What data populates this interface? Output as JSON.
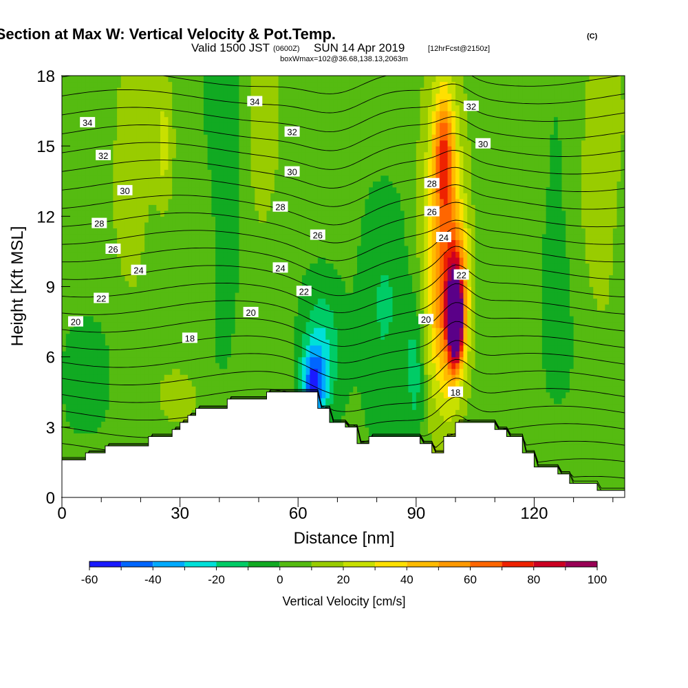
{
  "chart_data": {
    "type": "heatmap",
    "title": {
      "main": "Wind-Parallel Section at Max W: Vertical Velocity & Pot.Temp.",
      "main_tag": "(C)",
      "valid_prefix": "Valid 1500 JST",
      "valid_utc": "(0600Z)",
      "valid_date": "SUN 14 Apr 2019",
      "forecast": "[12hrFcst@2150z]",
      "box": "boxWmax=102@36.68,138.13,2063m"
    },
    "xlabel": "Distance [nm]",
    "ylabel": "Height [Kft MSL]",
    "xlim": [
      0,
      143
    ],
    "ylim": [
      0,
      18
    ],
    "x_ticks": [
      0,
      30,
      60,
      90,
      120
    ],
    "x_tick_labels": [
      "0",
      "30",
      "60",
      "90",
      "120"
    ],
    "x_minor_ticks": [
      10,
      20,
      40,
      50,
      70,
      80,
      100,
      110,
      130,
      140
    ],
    "y_ticks": [
      0,
      3,
      6,
      9,
      12,
      15,
      18
    ],
    "y_tick_labels": [
      "0",
      "3",
      "6",
      "9",
      "12",
      "15",
      "18"
    ],
    "colorbar": {
      "label": "Vertical Velocity [cm/s]",
      "bounds": [
        -60,
        -50,
        -40,
        -30,
        -20,
        -10,
        0,
        10,
        20,
        30,
        40,
        50,
        60,
        70,
        80,
        90,
        100
      ],
      "colors": [
        "#1a1aff",
        "#0066ff",
        "#00aaff",
        "#00e0d8",
        "#00cc66",
        "#11aa22",
        "#55bb11",
        "#99cc00",
        "#c8e000",
        "#ffe000",
        "#ffbb00",
        "#ff9900",
        "#ff6600",
        "#ee2200",
        "#cc0022",
        "#990055",
        "#5a0088"
      ],
      "tick_values": [
        -60,
        -40,
        -20,
        0,
        20,
        40,
        60,
        80,
        100
      ],
      "tick_labels": [
        "-60",
        "-40",
        "-20",
        "0",
        "20",
        "40",
        "60",
        "80",
        "100"
      ]
    },
    "terrain_profile": [
      [
        0,
        1.6
      ],
      [
        6,
        1.6
      ],
      [
        6,
        1.9
      ],
      [
        11,
        1.9
      ],
      [
        11,
        2.2
      ],
      [
        22,
        2.2
      ],
      [
        22,
        2.6
      ],
      [
        28,
        2.6
      ],
      [
        28,
        2.9
      ],
      [
        30,
        2.9
      ],
      [
        30,
        3.2
      ],
      [
        32,
        3.2
      ],
      [
        32,
        3.5
      ],
      [
        34,
        3.5
      ],
      [
        34,
        3.8
      ],
      [
        42,
        3.8
      ],
      [
        42,
        4.2
      ],
      [
        52,
        4.2
      ],
      [
        52,
        4.5
      ],
      [
        65,
        4.5
      ],
      [
        65,
        3.8
      ],
      [
        68,
        3.8
      ],
      [
        68,
        3.2
      ],
      [
        72,
        3.2
      ],
      [
        72,
        3.0
      ],
      [
        75,
        3.0
      ],
      [
        75,
        2.3
      ],
      [
        78,
        2.3
      ],
      [
        78,
        2.6
      ],
      [
        91,
        2.6
      ],
      [
        91,
        2.3
      ],
      [
        94,
        2.3
      ],
      [
        94,
        1.9
      ],
      [
        97,
        1.9
      ],
      [
        97,
        2.6
      ],
      [
        100,
        2.6
      ],
      [
        100,
        3.2
      ],
      [
        110,
        3.2
      ],
      [
        110,
        2.9
      ],
      [
        113,
        2.9
      ],
      [
        113,
        2.6
      ],
      [
        117,
        2.6
      ],
      [
        117,
        1.9
      ],
      [
        120,
        1.9
      ],
      [
        120,
        1.3
      ],
      [
        126,
        1.3
      ],
      [
        126,
        1.0
      ],
      [
        129,
        1.0
      ],
      [
        129,
        0.6
      ],
      [
        136,
        0.6
      ],
      [
        136,
        0.3
      ],
      [
        143,
        0.3
      ]
    ],
    "vertical_velocity_features": [
      {
        "x": 100,
        "y": 7.5,
        "sx": 1.6,
        "sy": 1.6,
        "value": 100
      },
      {
        "x": 100,
        "y": 8.6,
        "sx": 3.2,
        "sy": 3.0,
        "value": 55
      },
      {
        "x": 97,
        "y": 14.5,
        "sx": 2.5,
        "sy": 2.6,
        "value": 45
      },
      {
        "x": 97,
        "y": 12.0,
        "sx": 5.5,
        "sy": 7.5,
        "value": 35
      },
      {
        "x": 97,
        "y": 7.0,
        "sx": 5.0,
        "sy": 3.5,
        "value": 22
      },
      {
        "x": 64,
        "y": 4.8,
        "sx": 3.0,
        "sy": 1.6,
        "value": -45
      },
      {
        "x": 66,
        "y": 6.5,
        "sx": 5.0,
        "sy": 3.0,
        "value": -20
      },
      {
        "x": 82,
        "y": 7.5,
        "sx": 6.0,
        "sy": 4.5,
        "value": -15
      },
      {
        "x": 90,
        "y": 5.5,
        "sx": 2.5,
        "sy": 3.0,
        "value": -20
      },
      {
        "x": 42,
        "y": 14.5,
        "sx": 4.0,
        "sy": 6.5,
        "value": -12
      },
      {
        "x": 126,
        "y": 10.0,
        "sx": 4.5,
        "sy": 5.0,
        "value": -8
      },
      {
        "x": 18,
        "y": 14.0,
        "sx": 5.5,
        "sy": 6.0,
        "value": 15
      },
      {
        "x": 26,
        "y": 15.0,
        "sx": 2.5,
        "sy": 3.0,
        "value": 18
      },
      {
        "x": 51,
        "y": 15.0,
        "sx": 5.0,
        "sy": 6.0,
        "value": 12
      },
      {
        "x": 137,
        "y": 14.0,
        "sx": 6.0,
        "sy": 7.0,
        "value": 14
      },
      {
        "x": 30,
        "y": 4.3,
        "sx": 5.0,
        "sy": 1.2,
        "value": 16
      },
      {
        "x": 6,
        "y": 5.0,
        "sx": 6.0,
        "sy": 2.5,
        "value": -8
      }
    ],
    "potential_temperature_contours": [
      {
        "value": 18,
        "label": "18"
      },
      {
        "value": 20,
        "label": "20"
      },
      {
        "value": 22,
        "label": "22"
      },
      {
        "value": 24,
        "label": "24"
      },
      {
        "value": 26,
        "label": "26"
      },
      {
        "value": 28,
        "label": "28"
      },
      {
        "value": 30,
        "label": "30"
      },
      {
        "value": 32,
        "label": "32"
      },
      {
        "value": 34,
        "label": "34"
      }
    ],
    "contour_labels": [
      {
        "text": "34",
        "x": 6.5,
        "y": 16.0
      },
      {
        "text": "32",
        "x": 10.5,
        "y": 14.6
      },
      {
        "text": "30",
        "x": 16,
        "y": 13.1
      },
      {
        "text": "28",
        "x": 9.5,
        "y": 11.7
      },
      {
        "text": "26",
        "x": 13,
        "y": 10.6
      },
      {
        "text": "24",
        "x": 19.5,
        "y": 9.7
      },
      {
        "text": "22",
        "x": 10,
        "y": 8.5
      },
      {
        "text": "20",
        "x": 3.5,
        "y": 7.5
      },
      {
        "text": "18",
        "x": 32.5,
        "y": 6.8
      },
      {
        "text": "34",
        "x": 49,
        "y": 16.9
      },
      {
        "text": "32",
        "x": 58.5,
        "y": 15.6
      },
      {
        "text": "30",
        "x": 58.5,
        "y": 13.9
      },
      {
        "text": "28",
        "x": 55.5,
        "y": 12.4
      },
      {
        "text": "26",
        "x": 65,
        "y": 11.2
      },
      {
        "text": "24",
        "x": 55.5,
        "y": 9.8
      },
      {
        "text": "22",
        "x": 61.5,
        "y": 8.8
      },
      {
        "text": "20",
        "x": 48,
        "y": 7.9
      },
      {
        "text": "32",
        "x": 104,
        "y": 16.7
      },
      {
        "text": "30",
        "x": 107,
        "y": 15.1
      },
      {
        "text": "28",
        "x": 94,
        "y": 13.4
      },
      {
        "text": "26",
        "x": 94,
        "y": 12.2
      },
      {
        "text": "24",
        "x": 97,
        "y": 11.1
      },
      {
        "text": "22",
        "x": 101.5,
        "y": 9.5
      },
      {
        "text": "20",
        "x": 92.5,
        "y": 7.6
      },
      {
        "text": "18",
        "x": 100,
        "y": 4.5
      }
    ]
  }
}
